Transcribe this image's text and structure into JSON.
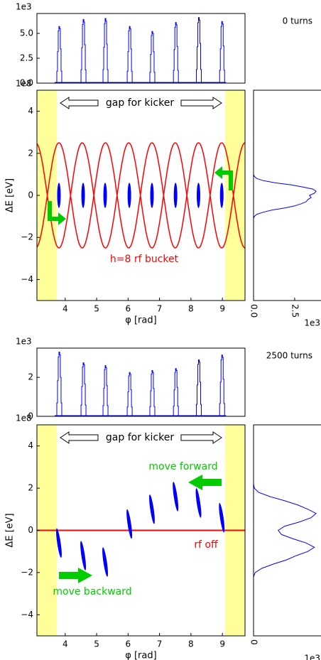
{
  "chart_data": [
    {
      "type": "peaks",
      "title": "0 turns",
      "x": [
        3.8,
        4.57,
        5.27,
        6.04,
        6.76,
        7.51,
        8.24,
        8.98
      ],
      "values": [
        5.7,
        6.4,
        6.5,
        5.7,
        5.2,
        6.1,
        6.6,
        6.2
      ],
      "xlim": [
        3.1,
        9.72
      ],
      "ylim": [
        0,
        7
      ],
      "yticks": [
        {
          "value": 0,
          "label": "0.0"
        },
        {
          "value": 2.5,
          "label": "2.5"
        },
        {
          "value": 5,
          "label": "5.0"
        }
      ],
      "y_multiplier": "1e3",
      "color": "#0000ff"
    },
    {
      "type": "phase_space",
      "x": [
        3.8,
        4.57,
        5.27,
        6.04,
        6.76,
        7.51,
        8.24,
        8.98
      ],
      "values": [
        0,
        0,
        0,
        0,
        0,
        0,
        0,
        0
      ],
      "bunch_extent": {
        "phi": 0,
        "dE": 1.2
      },
      "xlim": [
        3.1,
        9.72
      ],
      "ylim": [
        -5,
        5
      ],
      "xticks": [
        4,
        5,
        6,
        7,
        8,
        9
      ],
      "yticks": [
        {
          "value": -4,
          "label": "−4"
        },
        {
          "value": -2,
          "label": "−2"
        },
        0,
        2,
        4
      ],
      "xlabel": "φ [rad]",
      "ylabel": "ΔE [eV]",
      "y_multiplier": "1e8",
      "color": "#0000ff",
      "gaps": {
        "ranges": [
          [
            3.1,
            3.73
          ],
          [
            9.09,
            9.72
          ]
        ],
        "color": "#ffff99",
        "label": "gap for kicker"
      },
      "rf": {
        "type": "bucket",
        "height": 2.5,
        "length": 0.74,
        "color": "#ff0000",
        "label": "h=8 rf bucket"
      },
      "annotations": []
    },
    {
      "type": "energy_hist",
      "y": [
        -1.2,
        -1.1,
        -1.0,
        -0.9,
        -0.8,
        -0.7,
        -0.6,
        -0.5,
        -0.4,
        -0.3,
        -0.2,
        -0.1,
        0,
        0.1,
        0.2,
        0.3,
        0.4,
        0.5,
        0.6,
        0.7,
        0.8,
        0.9,
        1.0,
        1.1,
        1.2
      ],
      "values": [
        0,
        0,
        0.05,
        0.2,
        0.6,
        1.1,
        1.9,
        2.5,
        2.9,
        3.2,
        3.3,
        3.5,
        3.4,
        3.7,
        3.8,
        3.6,
        3.0,
        2.3,
        1.3,
        0.6,
        0.2,
        0.05,
        0,
        0,
        0
      ],
      "xlim": [
        0,
        4.1
      ],
      "ylim": [
        -5,
        5
      ],
      "xticks": [
        {
          "value": 0,
          "label": "0.0"
        },
        {
          "value": 2.5,
          "label": "2.5"
        }
      ],
      "x_multiplier": "1e3",
      "color": "#0000ff"
    },
    {
      "type": "peaks",
      "title": "2500 turns",
      "x": [
        3.8,
        4.57,
        5.27,
        6.04,
        6.76,
        7.51,
        8.24,
        8.98
      ],
      "values": [
        3.3,
        2.75,
        2.6,
        2.25,
        2.35,
        2.45,
        2.9,
        3.15
      ],
      "xlim": [
        3.1,
        9.72
      ],
      "ylim": [
        0,
        3.5
      ],
      "yticks": [
        0,
        2
      ],
      "y_multiplier": "1e3",
      "color": "#0000ff"
    },
    {
      "type": "phase_space",
      "x": [
        3.8,
        4.57,
        5.27,
        6.04,
        6.76,
        7.51,
        8.24,
        8.98
      ],
      "values": [
        -0.6,
        -1.2,
        -1.5,
        0.3,
        1.0,
        1.6,
        1.3,
        0.6
      ],
      "bunch_extent": {
        "phi": 0.14,
        "dE": 1.4
      },
      "xlim": [
        3.1,
        9.72
      ],
      "ylim": [
        -5,
        5
      ],
      "xticks": [
        4,
        5,
        6,
        7,
        8,
        9
      ],
      "yticks": [
        {
          "value": -4,
          "label": "−4"
        },
        {
          "value": -2,
          "label": "−2"
        },
        0,
        2,
        4
      ],
      "xlabel": "φ [rad]",
      "ylabel": "ΔE [eV]",
      "y_multiplier": "1e8",
      "color": "#0000ff",
      "gaps": {
        "ranges": [
          [
            3.1,
            3.73
          ],
          [
            9.09,
            9.72
          ]
        ],
        "color": "#ffff99",
        "label": "gap for kicker"
      },
      "rf": {
        "type": "off",
        "level": 0,
        "color": "#ff0000",
        "label": "rf off"
      },
      "annotations": [
        {
          "text": "move forward",
          "color": "#00cc00"
        },
        {
          "text": "move backward",
          "color": "#00cc00"
        }
      ]
    },
    {
      "type": "energy_hist",
      "y": [
        -2.2,
        -2.0,
        -1.8,
        -1.6,
        -1.4,
        -1.2,
        -1.0,
        -0.8,
        -0.6,
        -0.4,
        -0.2,
        0,
        0.2,
        0.4,
        0.6,
        0.8,
        1.0,
        1.2,
        1.4,
        1.6,
        1.8,
        2.0,
        2.2
      ],
      "values": [
        0,
        0.1,
        0.5,
        1.2,
        2.0,
        2.6,
        3.3,
        3.7,
        3.2,
        2.4,
        1.7,
        1.5,
        1.9,
        2.8,
        3.5,
        3.8,
        3.3,
        2.7,
        1.9,
        1.0,
        0.3,
        0.05,
        0
      ],
      "xlim": [
        0,
        4.1
      ],
      "ylim": [
        -5,
        5
      ],
      "xticks": [
        0
      ],
      "x_multiplier": "1e3",
      "color": "#0000ff"
    }
  ]
}
